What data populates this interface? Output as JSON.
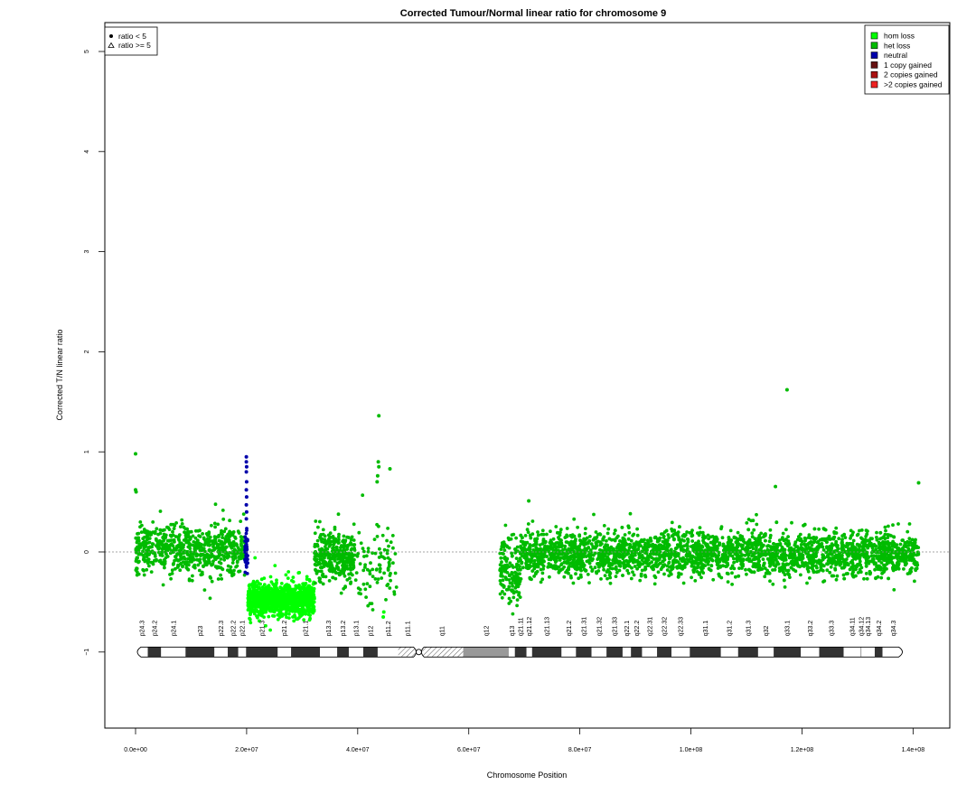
{
  "chart_data": {
    "type": "scatter",
    "title": "Corrected Tumour/Normal linear ratio for chromosome  9",
    "xlabel": "Chromosome Position",
    "ylabel": "Corrected T/N linear ratio",
    "xlim": [
      0,
      141000000
    ],
    "ylim": [
      -1.8,
      5.3
    ],
    "x_ticks": [
      0,
      20000000,
      40000000,
      60000000,
      80000000,
      100000000,
      120000000,
      140000000
    ],
    "x_tick_labels": [
      "0.0e+00",
      "2.0e+07",
      "4.0e+07",
      "6.0e+07",
      "8.0e+07",
      "1.0e+08",
      "1.2e+08",
      "1.4e+08"
    ],
    "y_ticks": [
      -1,
      0,
      1,
      2,
      3,
      4,
      5
    ],
    "y_tick_labels": [
      "−1",
      "0",
      "1",
      "2",
      "3",
      "4",
      "5"
    ],
    "reference_line": 0,
    "grid": false,
    "shape_legend": {
      "placement": "top-left",
      "entries": [
        {
          "symbol": "circle",
          "label": "ratio < 5"
        },
        {
          "symbol": "triangle",
          "label": "ratio >= 5"
        }
      ]
    },
    "color_legend": {
      "placement": "top-right",
      "entries": [
        {
          "label": "hom loss",
          "color": "#00ff00"
        },
        {
          "label": "het loss",
          "color": "#00bb00"
        },
        {
          "label": "neutral",
          "color": "#0000aa"
        },
        {
          "label": "1 copy gained",
          "color": "#661111"
        },
        {
          "label": "2 copies gained",
          "color": "#aa1111"
        },
        {
          "label": ">2 copies gained",
          "color": "#ee2222"
        }
      ]
    },
    "segments": [
      {
        "start": 0,
        "end": 19700000,
        "mean": 0.02,
        "sd": 0.12,
        "color": "#00bb00",
        "n": 700
      },
      {
        "start": 19700000,
        "end": 20200000,
        "mean": 0.02,
        "sd": 0.09,
        "color": "#0000aa",
        "n": 50
      },
      {
        "start": 20200000,
        "end": 32200000,
        "mean": -0.48,
        "sd": 0.08,
        "color": "#00ff00",
        "n": 1100
      },
      {
        "start": 32200000,
        "end": 39500000,
        "mean": -0.05,
        "sd": 0.12,
        "color": "#00bb00",
        "n": 340
      },
      {
        "start": 39500000,
        "end": 47000000,
        "mean": -0.15,
        "sd": 0.2,
        "color": "#00bb00",
        "n": 90
      },
      {
        "start": 65600000,
        "end": 69300000,
        "mean": -0.2,
        "sd": 0.17,
        "color": "#00bb00",
        "n": 150
      },
      {
        "start": 69300000,
        "end": 141000000,
        "mean": -0.02,
        "sd": 0.11,
        "color": "#00bb00",
        "n": 3100
      }
    ],
    "notable_points": [
      {
        "x": 0,
        "y": 0.98,
        "color": "#00bb00"
      },
      {
        "x": 0,
        "y": 0.62,
        "color": "#00bb00"
      },
      {
        "x": 100000,
        "y": 0.6,
        "color": "#00bb00"
      },
      {
        "x": 19950000,
        "y": 0.95,
        "color": "#0000aa"
      },
      {
        "x": 19950000,
        "y": 0.9,
        "color": "#0000aa"
      },
      {
        "x": 20000000,
        "y": 0.85,
        "color": "#0000aa"
      },
      {
        "x": 19950000,
        "y": 0.8,
        "color": "#0000aa"
      },
      {
        "x": 20000000,
        "y": 0.7,
        "color": "#0000aa"
      },
      {
        "x": 19950000,
        "y": 0.62,
        "color": "#0000aa"
      },
      {
        "x": 20000000,
        "y": 0.55,
        "color": "#0000aa"
      },
      {
        "x": 19950000,
        "y": 0.47,
        "color": "#0000aa"
      },
      {
        "x": 20000000,
        "y": 0.4,
        "color": "#0000aa"
      },
      {
        "x": 19950000,
        "y": 0.33,
        "color": "#0000aa"
      },
      {
        "x": 43800000,
        "y": 1.36,
        "color": "#00bb00"
      },
      {
        "x": 43700000,
        "y": 0.9,
        "color": "#00bb00"
      },
      {
        "x": 43800000,
        "y": 0.85,
        "color": "#00bb00"
      },
      {
        "x": 43600000,
        "y": 0.76,
        "color": "#00bb00"
      },
      {
        "x": 43500000,
        "y": 0.7,
        "color": "#00bb00"
      },
      {
        "x": 45800000,
        "y": 0.83,
        "color": "#00bb00"
      },
      {
        "x": 44700000,
        "y": -0.6,
        "color": "#00ff00"
      },
      {
        "x": 44600000,
        "y": -0.65,
        "color": "#00ff00"
      },
      {
        "x": 70800000,
        "y": 0.51,
        "color": "#00bb00"
      },
      {
        "x": 117300000,
        "y": 1.62,
        "color": "#00bb00"
      },
      {
        "x": 141000000,
        "y": 0.69,
        "color": "#00bb00"
      }
    ],
    "ideogram": {
      "y": -1,
      "centromere": 51000000,
      "bands": [
        {
          "name": "p24.3",
          "start": 0,
          "end": 2200000,
          "stain": "gneg"
        },
        {
          "name": "p24.2",
          "start": 2200000,
          "end": 4600000,
          "stain": "gpos"
        },
        {
          "name": "p24.1",
          "start": 4600000,
          "end": 9000000,
          "stain": "gneg"
        },
        {
          "name": "p23",
          "start": 9000000,
          "end": 14200000,
          "stain": "gpos"
        },
        {
          "name": "p22.3",
          "start": 14200000,
          "end": 16600000,
          "stain": "gneg"
        },
        {
          "name": "p22.2",
          "start": 16600000,
          "end": 18500000,
          "stain": "gpos"
        },
        {
          "name": "p22.1",
          "start": 18500000,
          "end": 19900000,
          "stain": "gneg"
        },
        {
          "name": "p21.3",
          "start": 19900000,
          "end": 25600000,
          "stain": "gpos"
        },
        {
          "name": "p21.2",
          "start": 25600000,
          "end": 28000000,
          "stain": "gneg"
        },
        {
          "name": "p21.1",
          "start": 28000000,
          "end": 33200000,
          "stain": "gpos"
        },
        {
          "name": "p13.3",
          "start": 33200000,
          "end": 36300000,
          "stain": "gneg"
        },
        {
          "name": "p13.2",
          "start": 36300000,
          "end": 38400000,
          "stain": "gpos"
        },
        {
          "name": "p13.1",
          "start": 38400000,
          "end": 41000000,
          "stain": "gneg"
        },
        {
          "name": "p12",
          "start": 41000000,
          "end": 43600000,
          "stain": "gpos"
        },
        {
          "name": "p11.2",
          "start": 43600000,
          "end": 47300000,
          "stain": "gneg"
        },
        {
          "name": "p11.1",
          "start": 47300000,
          "end": 50700000,
          "stain": "hatch"
        },
        {
          "name": "q11",
          "start": 51300000,
          "end": 59000000,
          "stain": "hatch"
        },
        {
          "name": "q12",
          "start": 59000000,
          "end": 67200000,
          "stain": "gvar"
        },
        {
          "name": "q13",
          "start": 67200000,
          "end": 68300000,
          "stain": "gneg"
        },
        {
          "name": "q21.11",
          "start": 68300000,
          "end": 70400000,
          "stain": "gpos"
        },
        {
          "name": "q21.12",
          "start": 70400000,
          "end": 71400000,
          "stain": "gneg"
        },
        {
          "name": "q21.13",
          "start": 71400000,
          "end": 76700000,
          "stain": "gpos"
        },
        {
          "name": "q21.2",
          "start": 76700000,
          "end": 79300000,
          "stain": "gneg"
        },
        {
          "name": "q21.31",
          "start": 79300000,
          "end": 82100000,
          "stain": "gpos"
        },
        {
          "name": "q21.32",
          "start": 82100000,
          "end": 84800000,
          "stain": "gneg"
        },
        {
          "name": "q21.33",
          "start": 84800000,
          "end": 87700000,
          "stain": "gpos"
        },
        {
          "name": "q22.1",
          "start": 87700000,
          "end": 89200000,
          "stain": "gneg"
        },
        {
          "name": "q22.2",
          "start": 89200000,
          "end": 91200000,
          "stain": "gpos"
        },
        {
          "name": "q22.31",
          "start": 91200000,
          "end": 93900000,
          "stain": "gneg"
        },
        {
          "name": "q22.32",
          "start": 93900000,
          "end": 96500000,
          "stain": "gpos"
        },
        {
          "name": "q22.33",
          "start": 96500000,
          "end": 99800000,
          "stain": "gneg"
        },
        {
          "name": "q31.1",
          "start": 99800000,
          "end": 105400000,
          "stain": "gpos"
        },
        {
          "name": "q31.2",
          "start": 105400000,
          "end": 108500000,
          "stain": "gneg"
        },
        {
          "name": "q31.3",
          "start": 108500000,
          "end": 112100000,
          "stain": "gpos"
        },
        {
          "name": "q32",
          "start": 112100000,
          "end": 114900000,
          "stain": "gneg"
        },
        {
          "name": "q33.1",
          "start": 114900000,
          "end": 119800000,
          "stain": "gpos"
        },
        {
          "name": "q33.2",
          "start": 119800000,
          "end": 123100000,
          "stain": "gneg"
        },
        {
          "name": "q33.3",
          "start": 123100000,
          "end": 127500000,
          "stain": "gpos"
        },
        {
          "name": "q34.11",
          "start": 127500000,
          "end": 130600000,
          "stain": "gneg"
        },
        {
          "name": "q34.12",
          "start": 130600000,
          "end": 130700000,
          "stain": "gpos"
        },
        {
          "name": "q34.13",
          "start": 130700000,
          "end": 133100000,
          "stain": "gneg"
        },
        {
          "name": "q34.2",
          "start": 133100000,
          "end": 134500000,
          "stain": "gpos"
        },
        {
          "name": "q34.3",
          "start": 134500000,
          "end": 138400000,
          "stain": "gneg"
        }
      ]
    }
  }
}
